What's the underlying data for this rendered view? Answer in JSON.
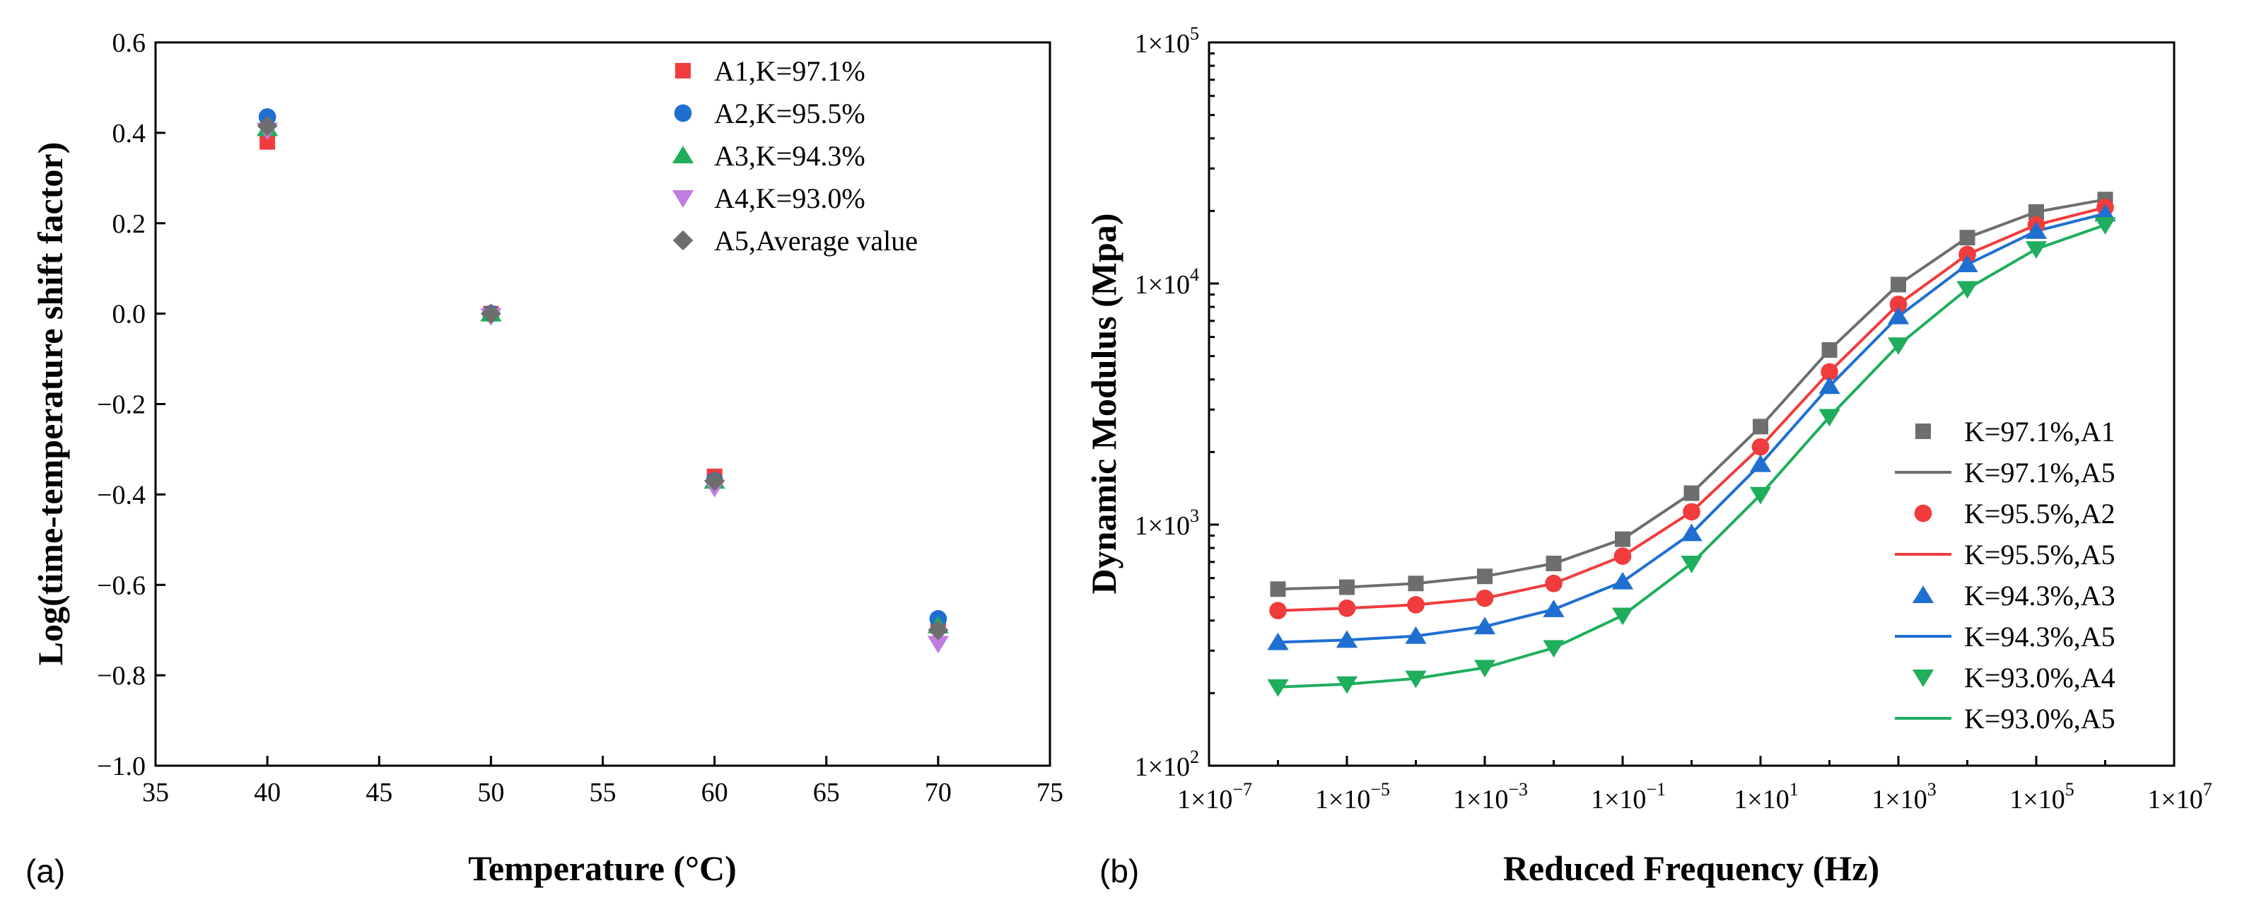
{
  "chart_data": [
    {
      "panel": "(a)",
      "type": "scatter",
      "xlabel": "Temperature (°C)",
      "ylabel": "Log(time-temperature shift factor)",
      "xlim": [
        35,
        75
      ],
      "ylim": [
        -1.0,
        0.6
      ],
      "xticks": [
        35,
        40,
        45,
        50,
        55,
        60,
        65,
        70,
        75
      ],
      "yticks": [
        0.6,
        0.4,
        0.2,
        0.0,
        -0.2,
        -0.4,
        -0.6,
        -0.8,
        -1.0
      ],
      "xtick_labels": [
        "35",
        "40",
        "45",
        "50",
        "55",
        "60",
        "65",
        "70",
        "75"
      ],
      "ytick_labels": [
        "0.6",
        "0.4",
        "0.2",
        "0.0",
        "−0.2",
        "−0.4",
        "−0.6",
        "−0.8",
        "−1.0"
      ],
      "legend_position": "top-right",
      "series": [
        {
          "name": "A1,K=97.1%",
          "marker": "square",
          "color": "#f03c3c",
          "x": [
            40,
            50,
            60,
            70
          ],
          "y": [
            0.38,
            0.0,
            -0.36,
            -0.69
          ]
        },
        {
          "name": "A2,K=95.5%",
          "marker": "circle",
          "color": "#1f6fd1",
          "x": [
            40,
            50,
            60,
            70
          ],
          "y": [
            0.435,
            0.0,
            -0.37,
            -0.675
          ]
        },
        {
          "name": "A3,K=94.3%",
          "marker": "triangle-up",
          "color": "#1fae5c",
          "x": [
            40,
            50,
            60,
            70
          ],
          "y": [
            0.41,
            0.0,
            -0.37,
            -0.69
          ]
        },
        {
          "name": "A4,K=93.0%",
          "marker": "triangle-down",
          "color": "#c07ddf",
          "x": [
            40,
            50,
            60,
            70
          ],
          "y": [
            0.405,
            -0.005,
            -0.385,
            -0.73
          ]
        },
        {
          "name": "A5,Average value",
          "marker": "diamond",
          "color": "#6e6e6e",
          "x": [
            40,
            50,
            60,
            70
          ],
          "y": [
            0.415,
            0.0,
            -0.37,
            -0.7
          ]
        }
      ]
    },
    {
      "panel": "(b)",
      "type": "line",
      "xscale": "log",
      "yscale": "log",
      "xlabel": "Reduced Frequency (Hz)",
      "ylabel": "Dynamic Modulus (Mpa)",
      "xlim_exp": [
        -7,
        7
      ],
      "ylim_exp": [
        2,
        5
      ],
      "xtick_exps": [
        -7,
        -5,
        -3,
        -1,
        1,
        3,
        5,
        7
      ],
      "ytick_exps": [
        2,
        3,
        4,
        5
      ],
      "xtick_labels": [
        "1×10",
        "1×10",
        "1×10",
        "1×10",
        "1×10",
        "1×10",
        "1×10",
        "1×10"
      ],
      "xtick_sups": [
        "−7",
        "−5",
        "−3",
        "−1",
        "1",
        "3",
        "5",
        "7"
      ],
      "ytick_labels": [
        "1×10",
        "1×10",
        "1×10",
        "1×10"
      ],
      "ytick_sups": [
        "2",
        "3",
        "4",
        "5"
      ],
      "legend_position": "bottom-right",
      "x": [
        1e-06,
        1e-05,
        0.0001,
        0.001,
        0.01,
        0.1,
        1,
        10,
        100,
        1000,
        10000,
        100000,
        1000000
      ],
      "series": [
        {
          "name": "K=97.1%,A1",
          "kind": "marker",
          "marker": "square",
          "color": "#6e6e6e",
          "values": [
            540,
            550,
            570,
            610,
            690,
            870,
            1350,
            2550,
            5300,
            9900,
            15500,
            19800,
            22300
          ]
        },
        {
          "name": "K=97.1%,A5",
          "kind": "line",
          "color": "#6e6e6e",
          "values": [
            540,
            550,
            570,
            610,
            690,
            870,
            1350,
            2550,
            5300,
            9900,
            15500,
            19800,
            22300
          ]
        },
        {
          "name": "K=95.5%,A2",
          "kind": "marker",
          "marker": "circle",
          "color": "#f03c3c",
          "values": [
            440,
            450,
            465,
            495,
            570,
            740,
            1130,
            2100,
            4300,
            8200,
            13200,
            17500,
            20700
          ]
        },
        {
          "name": "K=95.5%,A5",
          "kind": "line",
          "color": "#f03c3c",
          "values": [
            440,
            450,
            465,
            495,
            570,
            740,
            1130,
            2100,
            4300,
            8200,
            13200,
            17500,
            20700
          ]
        },
        {
          "name": "K=94.3%,A3",
          "kind": "marker",
          "marker": "triangle-up",
          "color": "#1f6fd1",
          "values": [
            325,
            332,
            345,
            378,
            445,
            580,
            920,
            1780,
            3750,
            7300,
            12000,
            16500,
            19500
          ]
        },
        {
          "name": "K=94.3%,A5",
          "kind": "line",
          "color": "#1f6fd1",
          "values": [
            325,
            332,
            345,
            378,
            445,
            580,
            920,
            1780,
            3750,
            7300,
            12000,
            16500,
            19500
          ]
        },
        {
          "name": "K=93.0%,A4",
          "kind": "marker",
          "marker": "triangle-down",
          "color": "#1fae5c",
          "values": [
            212,
            218,
            230,
            255,
            308,
            420,
            690,
            1330,
            2800,
            5550,
            9500,
            13900,
            17500
          ]
        },
        {
          "name": "K=93.0%,A5",
          "kind": "line",
          "color": "#1fae5c",
          "values": [
            212,
            218,
            230,
            255,
            308,
            420,
            690,
            1330,
            2800,
            5550,
            9500,
            13900,
            17500
          ]
        }
      ]
    }
  ]
}
